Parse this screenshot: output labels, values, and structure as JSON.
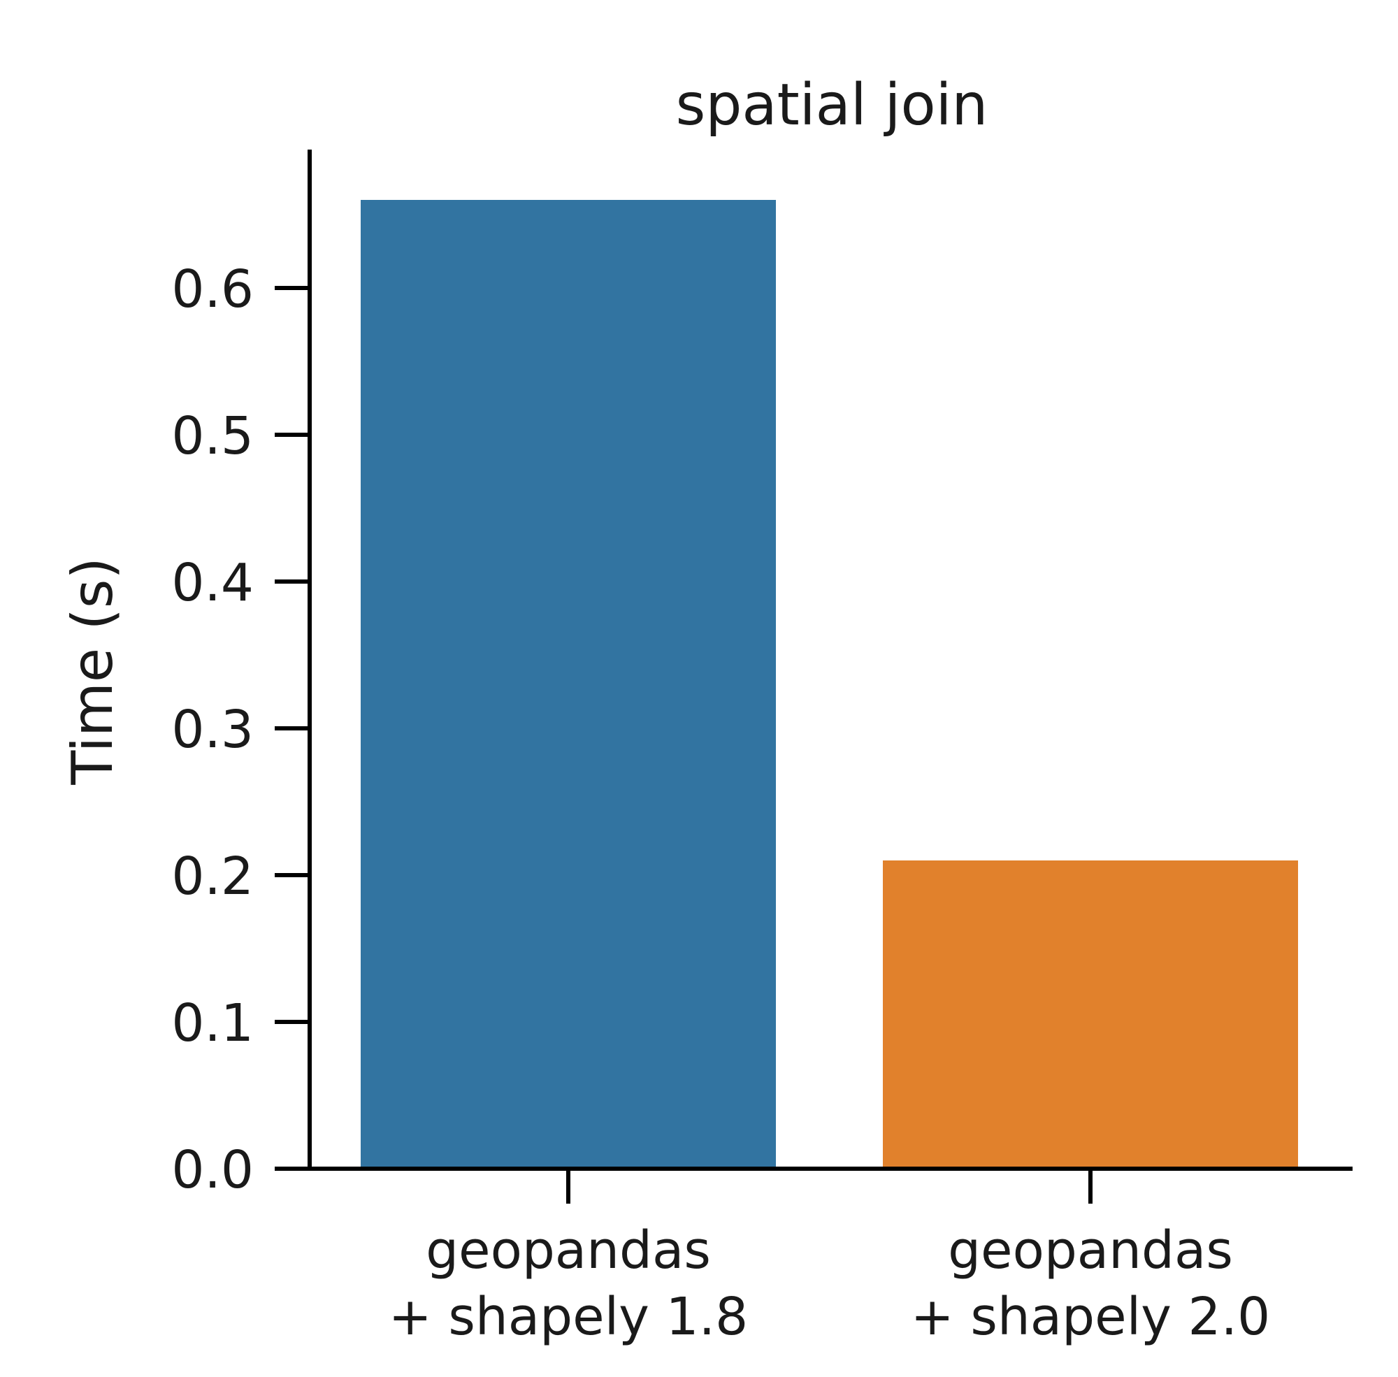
{
  "chart_data": {
    "type": "bar",
    "title": "spatial join",
    "xlabel": "",
    "ylabel": "Time (s)",
    "categories": [
      [
        "geopandas",
        "+ shapely 1.8"
      ],
      [
        "geopandas",
        "+ shapely 2.0"
      ]
    ],
    "values": [
      0.66,
      0.21
    ],
    "colors": [
      "#3274a1",
      "#e1812c"
    ],
    "ylim": [
      0,
      0.7
    ],
    "yticks": [
      "0.0",
      "0.1",
      "0.2",
      "0.3",
      "0.4",
      "0.5",
      "0.6"
    ],
    "grid": false,
    "legend": "none"
  }
}
